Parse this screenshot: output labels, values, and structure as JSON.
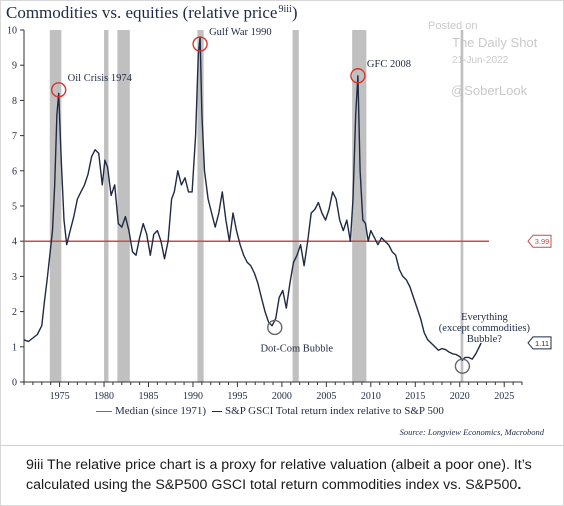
{
  "title": {
    "main": "Commodities vs. equities (relative price",
    "superscript": "9iii",
    "close": ")"
  },
  "watermark": {
    "posted": "Posted on",
    "brand": "The Daily Shot",
    "date": "21-Jun-2022",
    "handle": "@SoberLook"
  },
  "legend": {
    "median": "Median (since 1971)",
    "series": "S&P GSCI Total return index relative to S&P 500"
  },
  "source": "Source: Longview Economics, Macrobond",
  "footnote": {
    "text": "9iii The relative price chart is a proxy for relative valuation (albeit a poor one). It’s calculated using the S&P500 GSCI total return commodities index vs. S&P500",
    "end": "."
  },
  "colors": {
    "series": "#1f2a44",
    "median": "#c0504d",
    "recession": "#c0c0c0",
    "annotation_circle_red": "#d9342b",
    "annotation_circle_gray": "#666666",
    "text": "#1f2a44"
  },
  "chart_data": {
    "type": "line",
    "xlim": [
      1971,
      2027
    ],
    "ylim": [
      0,
      10
    ],
    "x_ticks": [
      1975,
      1980,
      1985,
      1990,
      1995,
      2000,
      2005,
      2010,
      2015,
      2020,
      2025
    ],
    "y_ticks": [
      0,
      1,
      2,
      3,
      4,
      5,
      6,
      7,
      8,
      9,
      10
    ],
    "grid": false,
    "legend_position": "bottom",
    "recessions": [
      [
        1973.9,
        1975.2
      ],
      [
        1980.0,
        1980.5
      ],
      [
        1981.5,
        1982.9
      ],
      [
        1990.5,
        1991.2
      ],
      [
        2001.2,
        2001.9
      ],
      [
        2007.9,
        2009.5
      ],
      [
        2020.1,
        2020.4
      ]
    ],
    "median": {
      "name": "Median (since 1971)",
      "value": 4.0,
      "x_start": 1971,
      "x_end": 2022.5,
      "label": "3.99"
    },
    "last_value_label": "1.11",
    "series": [
      {
        "name": "S&P GSCI Total return index relative to S&P 500",
        "x": [
          1971.0,
          1971.5,
          1972.0,
          1972.5,
          1973.0,
          1973.3,
          1973.6,
          1973.9,
          1974.2,
          1974.45,
          1974.7,
          1974.9,
          1975.2,
          1975.5,
          1975.8,
          1976.2,
          1976.6,
          1977.0,
          1977.4,
          1977.8,
          1978.2,
          1978.6,
          1979.0,
          1979.4,
          1979.8,
          1980.1,
          1980.4,
          1980.8,
          1981.2,
          1981.6,
          1982.0,
          1982.4,
          1982.8,
          1983.2,
          1983.6,
          1984.0,
          1984.4,
          1984.8,
          1985.2,
          1985.6,
          1986.0,
          1986.4,
          1986.8,
          1987.2,
          1987.6,
          1987.9,
          1988.3,
          1988.7,
          1989.1,
          1989.5,
          1989.9,
          1990.3,
          1990.6,
          1990.8,
          1991.0,
          1991.3,
          1991.7,
          1992.1,
          1992.5,
          1992.9,
          1993.3,
          1993.7,
          1994.1,
          1994.5,
          1994.9,
          1995.3,
          1995.7,
          1996.1,
          1996.5,
          1996.9,
          1997.3,
          1997.7,
          1998.1,
          1998.5,
          1998.9,
          1999.3,
          1999.7,
          2000.1,
          2000.5,
          2000.9,
          2001.3,
          2001.7,
          2002.1,
          2002.5,
          2002.9,
          2003.3,
          2003.7,
          2004.1,
          2004.5,
          2004.9,
          2005.3,
          2005.7,
          2006.1,
          2006.5,
          2006.9,
          2007.3,
          2007.7,
          2008.0,
          2008.3,
          2008.55,
          2008.8,
          2009.1,
          2009.4,
          2009.7,
          2010.0,
          2010.4,
          2010.8,
          2011.2,
          2011.6,
          2012.0,
          2012.4,
          2012.8,
          2013.2,
          2013.6,
          2014.0,
          2014.4,
          2014.8,
          2015.2,
          2015.6,
          2016.0,
          2016.4,
          2016.8,
          2017.2,
          2017.6,
          2018.0,
          2018.4,
          2018.8,
          2019.2,
          2019.6,
          2020.0,
          2020.3,
          2020.6,
          2021.0,
          2021.4,
          2021.8,
          2022.2,
          2022.4
        ],
        "values": [
          1.2,
          1.15,
          1.25,
          1.35,
          1.6,
          2.3,
          2.9,
          3.6,
          4.3,
          5.6,
          7.6,
          8.2,
          6.2,
          4.6,
          3.9,
          4.3,
          4.7,
          5.2,
          5.4,
          5.6,
          5.9,
          6.4,
          6.6,
          6.5,
          5.6,
          6.3,
          6.1,
          5.3,
          5.6,
          4.5,
          4.4,
          4.7,
          4.3,
          3.7,
          3.6,
          4.1,
          4.5,
          4.2,
          3.6,
          4.2,
          4.3,
          4.0,
          3.5,
          4.0,
          5.2,
          5.4,
          6.0,
          5.6,
          5.8,
          5.4,
          5.4,
          7.0,
          9.3,
          9.8,
          7.6,
          6.0,
          5.2,
          4.8,
          4.4,
          4.8,
          5.4,
          4.6,
          4.0,
          4.8,
          4.3,
          3.9,
          3.6,
          3.4,
          3.3,
          3.1,
          2.8,
          2.4,
          2.0,
          1.7,
          1.6,
          1.8,
          2.4,
          2.6,
          2.1,
          2.8,
          3.4,
          3.6,
          3.9,
          3.3,
          4.0,
          4.8,
          4.9,
          5.1,
          4.8,
          4.6,
          4.9,
          5.4,
          5.2,
          4.6,
          4.3,
          4.6,
          4.0,
          5.2,
          7.6,
          8.7,
          6.0,
          4.6,
          4.5,
          4.0,
          4.3,
          4.1,
          3.9,
          4.1,
          4.0,
          3.9,
          3.7,
          3.6,
          3.2,
          3.0,
          2.9,
          2.7,
          2.4,
          2.1,
          1.8,
          1.4,
          1.2,
          1.1,
          1.0,
          0.9,
          0.95,
          0.92,
          0.85,
          0.8,
          0.78,
          0.72,
          0.62,
          0.7,
          0.7,
          0.65,
          0.8,
          1.0,
          1.11
        ]
      }
    ],
    "annotations": [
      {
        "text": "Oil Crisis 1974",
        "x": 1974.9,
        "y": 8.3,
        "circle": "red",
        "label_pos": "right"
      },
      {
        "text": "Gulf War 1990",
        "x": 1990.8,
        "y": 9.6,
        "circle": "red",
        "label_pos": "right"
      },
      {
        "text": "GFC 2008",
        "x": 2008.55,
        "y": 8.7,
        "circle": "red",
        "label_pos": "right"
      },
      {
        "text": "Dot-Com Bubble",
        "x": 1999.2,
        "y": 1.55,
        "circle": "gray",
        "label_pos": "below"
      },
      {
        "text": "Everything\n(except commodities)\nBubble?",
        "x": 2020.3,
        "y": 0.45,
        "circle": "gray",
        "label_pos": "above"
      }
    ]
  }
}
